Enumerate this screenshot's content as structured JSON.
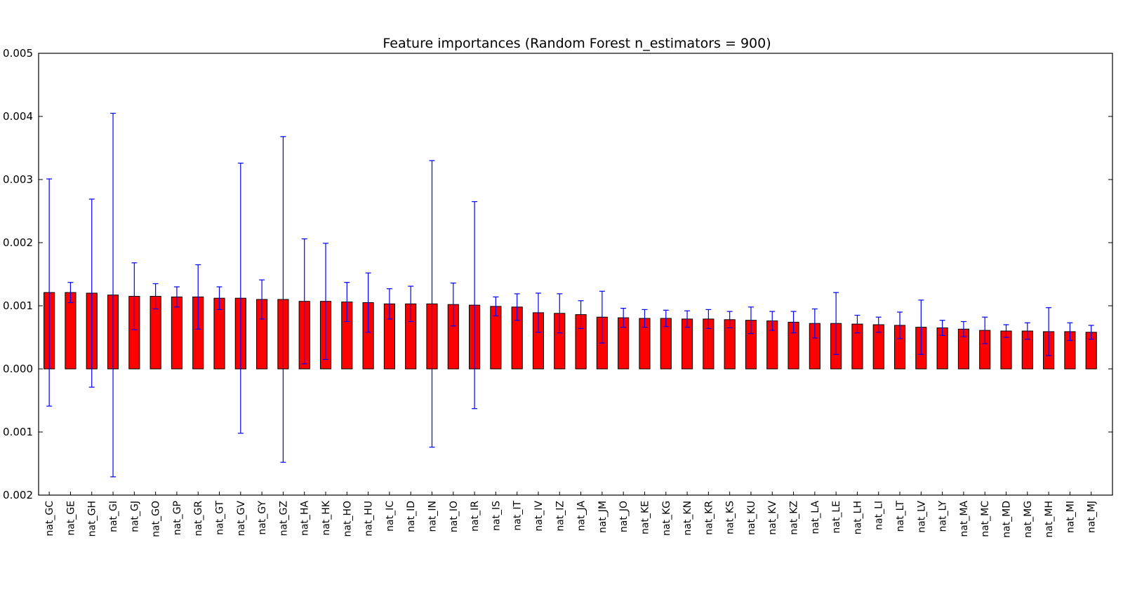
{
  "chart_data": {
    "type": "bar",
    "title": "Feature importances (Random Forest n_estimators = 900)",
    "xlabel": "",
    "ylabel": "",
    "ylim": [
      -0.002,
      0.005
    ],
    "yticks": [
      -0.002,
      -0.001,
      0.0,
      0.001,
      0.002,
      0.003,
      0.004,
      0.005
    ],
    "ytick_labels": [
      "0.002",
      "0.001",
      "0.000",
      "0.001",
      "0.002",
      "0.003",
      "0.004",
      "0.005"
    ],
    "grid": false,
    "bar_color": "#ff0000",
    "error_color": "#0000ff",
    "categories": [
      "nat_GC",
      "nat_GE",
      "nat_GH",
      "nat_GI",
      "nat_GJ",
      "nat_GO",
      "nat_GP",
      "nat_GR",
      "nat_GT",
      "nat_GV",
      "nat_GY",
      "nat_GZ",
      "nat_HA",
      "nat_HK",
      "nat_HO",
      "nat_HU",
      "nat_IC",
      "nat_ID",
      "nat_IN",
      "nat_IO",
      "nat_IR",
      "nat_IS",
      "nat_IT",
      "nat_IV",
      "nat_IZ",
      "nat_JA",
      "nat_JM",
      "nat_JO",
      "nat_KE",
      "nat_KG",
      "nat_KN",
      "nat_KR",
      "nat_KS",
      "nat_KU",
      "nat_KV",
      "nat_KZ",
      "nat_LA",
      "nat_LE",
      "nat_LH",
      "nat_LI",
      "nat_LT",
      "nat_LV",
      "nat_LY",
      "nat_MA",
      "nat_MC",
      "nat_MD",
      "nat_MG",
      "nat_MH",
      "nat_MI",
      "nat_MJ"
    ],
    "values": [
      0.00121,
      0.00121,
      0.0012,
      0.00117,
      0.00115,
      0.00115,
      0.00114,
      0.00114,
      0.00112,
      0.00112,
      0.0011,
      0.0011,
      0.00107,
      0.00107,
      0.00106,
      0.00105,
      0.00103,
      0.00103,
      0.00103,
      0.00102,
      0.00101,
      0.00099,
      0.00098,
      0.00089,
      0.00088,
      0.00086,
      0.00082,
      0.00081,
      0.0008,
      0.0008,
      0.00079,
      0.00079,
      0.00078,
      0.00077,
      0.00076,
      0.00074,
      0.00072,
      0.00072,
      0.00071,
      0.0007,
      0.00069,
      0.00066,
      0.00065,
      0.00063,
      0.00061,
      0.0006,
      0.0006,
      0.00059,
      0.00059,
      0.00058
    ],
    "errors": [
      0.0018,
      0.00016,
      0.00149,
      0.00288,
      0.00053,
      0.0002,
      0.00016,
      0.00051,
      0.00018,
      0.00214,
      0.00031,
      0.00258,
      0.00099,
      0.00092,
      0.00031,
      0.00047,
      0.00024,
      0.00028,
      0.00227,
      0.00034,
      0.00164,
      0.00015,
      0.00021,
      0.00031,
      0.00031,
      0.00022,
      0.00041,
      0.00015,
      0.00014,
      0.00013,
      0.00013,
      0.00015,
      0.00013,
      0.00021,
      0.00015,
      0.00017,
      0.00023,
      0.00049,
      0.00014,
      0.00012,
      0.00021,
      0.00043,
      0.00012,
      0.00012,
      0.00021,
      0.0001,
      0.00013,
      0.00038,
      0.00014,
      0.00011
    ]
  }
}
